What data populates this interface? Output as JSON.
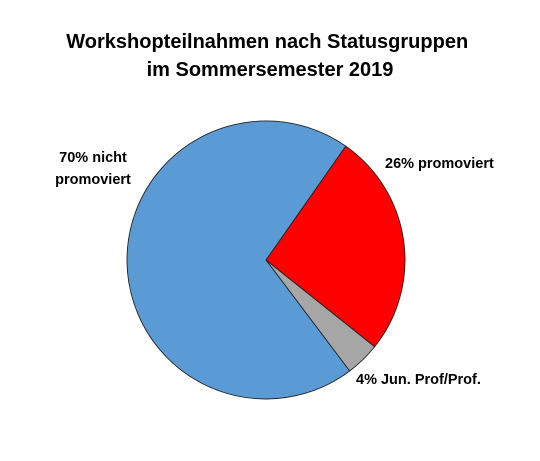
{
  "chart_data": {
    "type": "pie",
    "title_lines": [
      "Workshopteilnahmen nach Statusgruppen",
      "im Sommersemester 2019"
    ],
    "slices": [
      {
        "category": "promoviert",
        "value": 26,
        "color": "#ff0000",
        "label_lines": [
          "26% promoviert"
        ]
      },
      {
        "category": "Jun. Prof/Prof.",
        "value": 4,
        "color": "#a6a6a6",
        "label_lines": [
          "4% Jun. Prof/Prof."
        ]
      },
      {
        "category": "nicht promoviert",
        "value": 70,
        "color": "#5b9bd5",
        "label_lines": [
          "70% nicht",
          "promoviert"
        ]
      }
    ],
    "legend": "none"
  }
}
